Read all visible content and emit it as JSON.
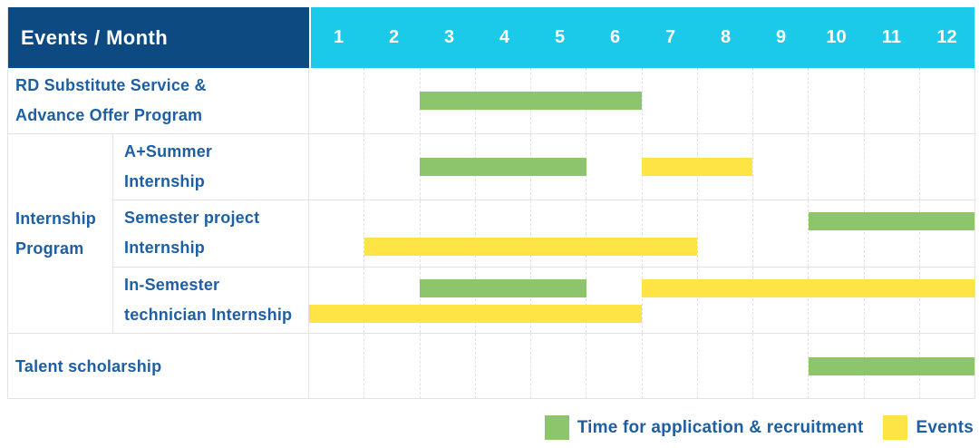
{
  "table": {
    "corner_label": "Events / Month",
    "months": [
      "1",
      "2",
      "3",
      "4",
      "5",
      "6",
      "7",
      "8",
      "9",
      "10",
      "11",
      "12"
    ]
  },
  "group": {
    "label_lines": [
      "Internship",
      "Program"
    ]
  },
  "rows": [
    {
      "id": "rd-substitute",
      "label_lines": [
        "RD Substitute Service &",
        "Advance Offer Program"
      ],
      "bars": [
        {
          "color": "green",
          "start": 3,
          "end": 6,
          "line": 0
        }
      ]
    },
    {
      "id": "a-plus-summer",
      "label_lines": [
        "A+Summer",
        "Internship"
      ],
      "bars": [
        {
          "color": "green",
          "start": 3,
          "end": 5,
          "line": 0
        },
        {
          "color": "yellow",
          "start": 7,
          "end": 8,
          "line": 0
        }
      ]
    },
    {
      "id": "semester-project",
      "label_lines": [
        "Semester project",
        "Internship"
      ],
      "bars": [
        {
          "color": "green",
          "start": 10,
          "end": 12,
          "line": 1
        },
        {
          "color": "yellow",
          "start": 2,
          "end": 7,
          "line": 2
        }
      ]
    },
    {
      "id": "in-semester-technician",
      "label_lines": [
        "In-Semester",
        "technician Internship"
      ],
      "bars": [
        {
          "color": "green",
          "start": 3,
          "end": 5,
          "line": 1
        },
        {
          "color": "yellow",
          "start": 7,
          "end": 12,
          "line": 1
        },
        {
          "color": "yellow",
          "start": 1,
          "end": 6,
          "line": 2
        }
      ]
    },
    {
      "id": "talent-scholarship",
      "label_lines": [
        "Talent scholarship"
      ],
      "bars": [
        {
          "color": "green",
          "start": 10,
          "end": 12,
          "line": 0
        }
      ]
    }
  ],
  "legend": [
    {
      "color": "green",
      "label": "Time for application & recruitment"
    },
    {
      "color": "yellow",
      "label": "Events"
    }
  ],
  "colors": {
    "green": "#8cc56b",
    "yellow": "#ffe445",
    "header_navy": "#0c4a81",
    "header_cyan": "#1bc9e8",
    "label_blue": "#1e5fa4",
    "gridline": "#e3e3e3"
  },
  "chart_data": {
    "type": "table",
    "subtype": "gantt",
    "title": "Events / Month",
    "xlabel": "Month",
    "x_ticks": [
      1,
      2,
      3,
      4,
      5,
      6,
      7,
      8,
      9,
      10,
      11,
      12
    ],
    "x_range": [
      1,
      12
    ],
    "grid": true,
    "legend_position": "bottom-right",
    "legend": [
      "Time for application & recruitment",
      "Events"
    ],
    "rows": [
      {
        "name": "RD Substitute Service & Advance Offer Program",
        "group": null,
        "bars": [
          {
            "series": "Time for application & recruitment",
            "months": [
              3,
              6
            ]
          }
        ]
      },
      {
        "name": "A+Summer Internship",
        "group": "Internship Program",
        "bars": [
          {
            "series": "Time for application & recruitment",
            "months": [
              3,
              5
            ]
          },
          {
            "series": "Events",
            "months": [
              7,
              8
            ]
          }
        ]
      },
      {
        "name": "Semester project Internship",
        "group": "Internship Program",
        "bars": [
          {
            "series": "Time for application & recruitment",
            "months": [
              10,
              12
            ]
          },
          {
            "series": "Events",
            "months": [
              2,
              7
            ]
          }
        ]
      },
      {
        "name": "In-Semester technician Internship",
        "group": "Internship Program",
        "bars": [
          {
            "series": "Time for application & recruitment",
            "months": [
              3,
              5
            ]
          },
          {
            "series": "Events",
            "months": [
              7,
              12
            ]
          },
          {
            "series": "Events",
            "months": [
              1,
              6
            ]
          }
        ]
      },
      {
        "name": "Talent scholarship",
        "group": null,
        "bars": [
          {
            "series": "Time for application & recruitment",
            "months": [
              10,
              12
            ]
          }
        ]
      }
    ]
  }
}
